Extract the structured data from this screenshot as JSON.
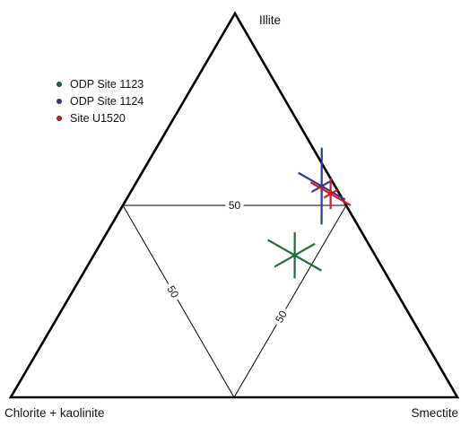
{
  "chart_data": {
    "type": "scatter",
    "subtype": "ternary",
    "title": "",
    "vertices": {
      "top": "Illite",
      "left": "Chlorite + kaolinite",
      "right": "Smectite"
    },
    "midline_labels": [
      "50",
      "50",
      "50"
    ],
    "legend_placement": "top-left",
    "series": [
      {
        "name": "ODP Site 1123",
        "color": "#1f6b3a",
        "points": [
          {
            "illite": 37,
            "smectite": 45,
            "chlorite_kaolinite": 18,
            "err_illite": 6,
            "err_smectite": 8,
            "err_chlorite_kaolinite": 6
          }
        ]
      },
      {
        "name": "ODP Site 1124",
        "color": "#2b3a9c",
        "points": [
          {
            "illite": 55,
            "smectite": 42,
            "chlorite_kaolinite": 3,
            "err_illite": 10,
            "err_smectite": 7,
            "err_chlorite_kaolinite": 3
          }
        ]
      },
      {
        "name": "Site U1520",
        "color": "#e8141b",
        "points": [
          {
            "illite": 53,
            "smectite": 45,
            "chlorite_kaolinite": 2,
            "err_illite": 4,
            "err_smectite": 6,
            "err_chlorite_kaolinite": 2
          }
        ]
      }
    ]
  }
}
